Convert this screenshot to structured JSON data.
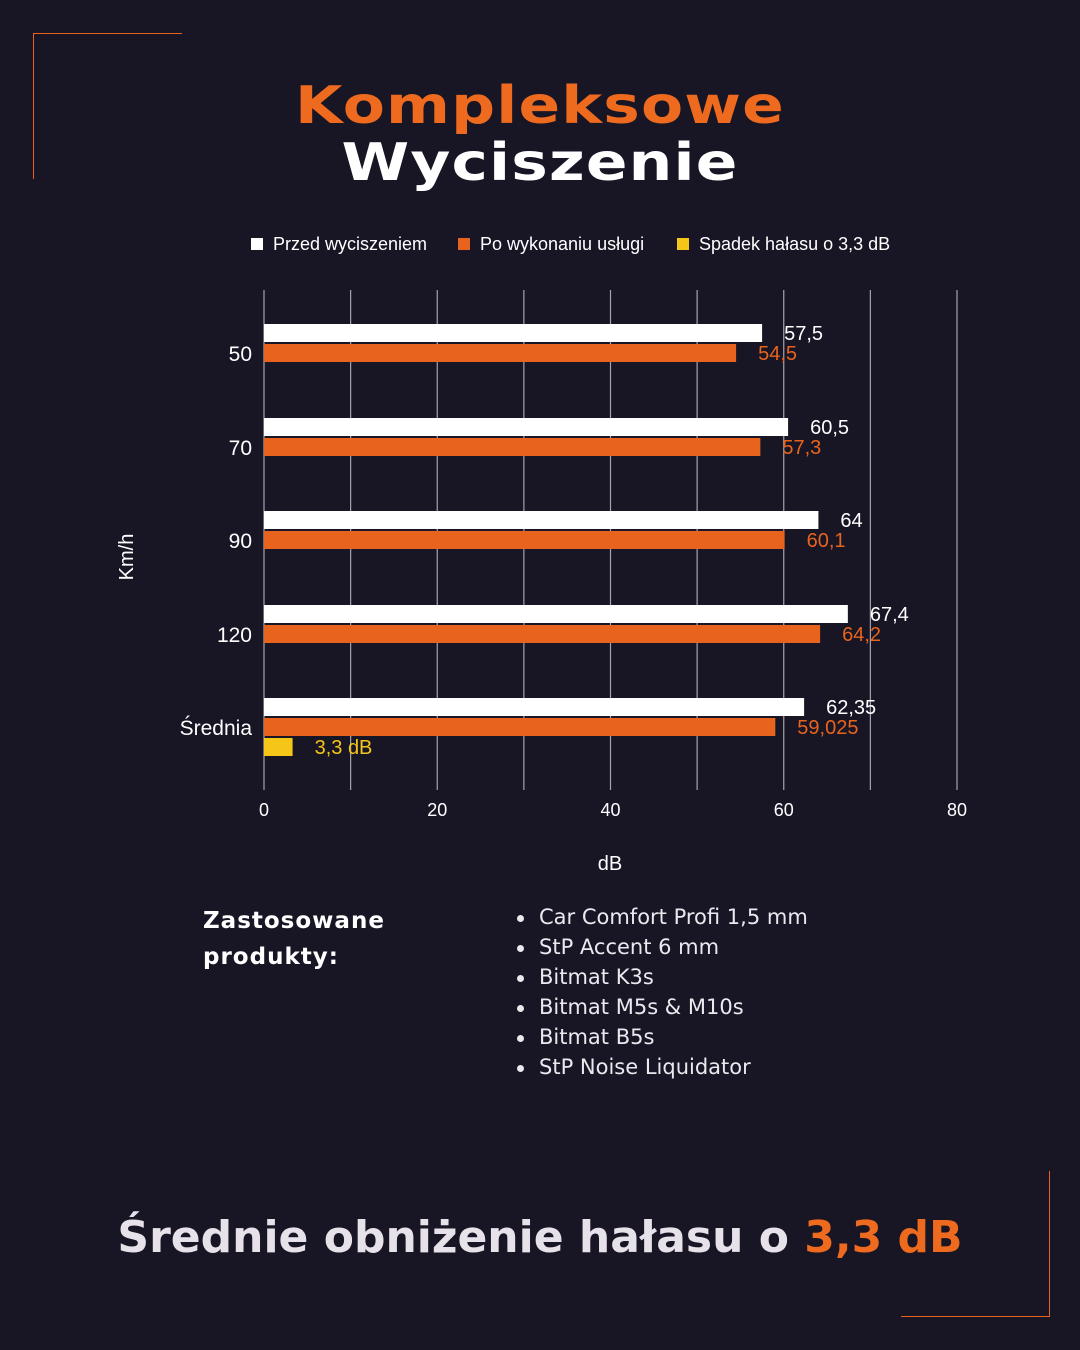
{
  "header": {
    "title_line1": "Kompleksowe",
    "title_line2": "Wyciszenie"
  },
  "colors": {
    "accent": "#ee6a1f",
    "before": "#ffffff",
    "after": "#e8641e",
    "drop": "#f5c518",
    "background": "#181524"
  },
  "chart_data": {
    "type": "bar",
    "orientation": "horizontal",
    "categories": [
      "50",
      "70",
      "90",
      "120",
      "Średnia"
    ],
    "series": [
      {
        "name": "Przed wyciszeniem",
        "values": [
          57.5,
          60.5,
          64,
          67.4,
          62.35
        ],
        "labels": [
          "57,5",
          "60,5",
          "64",
          "67,4",
          "62,35"
        ]
      },
      {
        "name": "Po wykonaniu usługi",
        "values": [
          54.5,
          57.3,
          60.1,
          64.2,
          59.025
        ],
        "labels": [
          "54,5",
          "57,3",
          "60,1",
          "64,2",
          "59,025"
        ]
      },
      {
        "name": "Spadek hałasu o 3,3 dB",
        "values": [
          null,
          null,
          null,
          null,
          3.3
        ],
        "labels": [
          "",
          "",
          "",
          "",
          "3,3 dB"
        ]
      }
    ],
    "xlabel": "dB",
    "ylabel": "Km/h",
    "xlim": [
      0,
      80
    ],
    "xticks": [
      "0",
      "20",
      "40",
      "60",
      "80"
    ],
    "grid": true,
    "legend": "top"
  },
  "products": {
    "title_line1": "Zastosowane",
    "title_line2": "produkty:",
    "items": [
      "Car Comfort Profi 1,5 mm",
      "StP Accent 6 mm",
      "Bitmat K3s",
      "Bitmat M5s & M10s",
      "Bitmat B5s",
      "StP Noise Liquidator"
    ]
  },
  "footer": {
    "text": "Średnie obniżenie hałasu o ",
    "highlight": "3,3 dB"
  }
}
